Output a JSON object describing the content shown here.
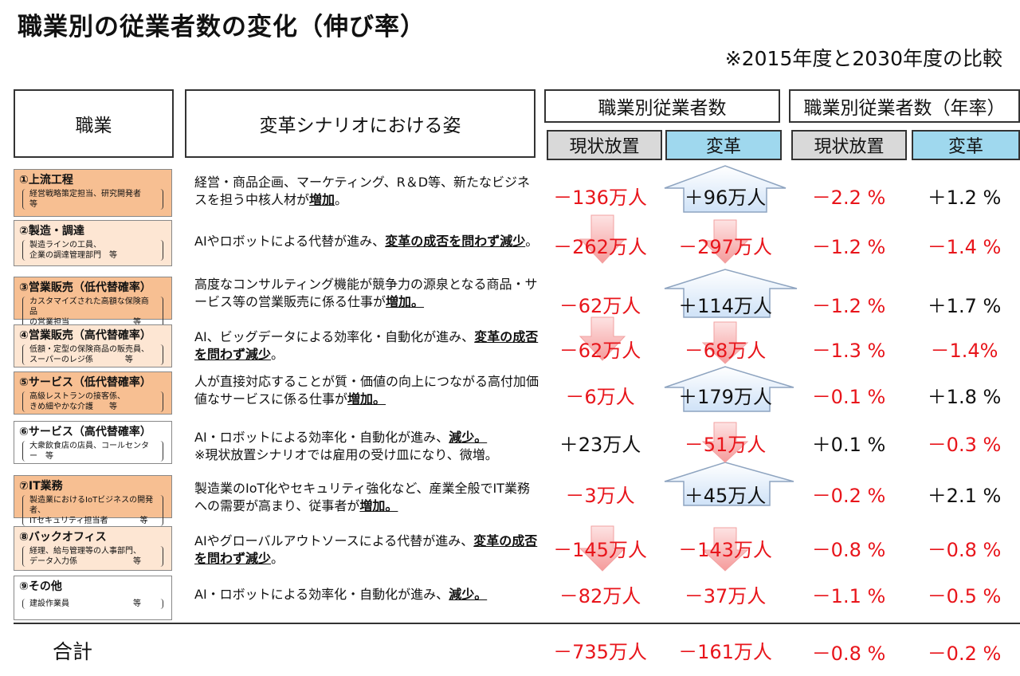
{
  "title": "職業別の従業者数の変化（伸び率）",
  "subtitle": "※2015年度と2030年度の比較",
  "headers": {
    "job": "職業",
    "scenario": "変革シナリオにおける姿",
    "workers": "職業別従業者数",
    "rate": "職業別従業者数（年率）",
    "status_quo": "現状放置",
    "reform": "変革"
  },
  "rows": [
    {
      "name": "①上流工程",
      "detail": "経営戦略策定担当、研究開発者\n等",
      "desc": "経営・商品企画、マーケティング、R＆D等、新たなビジネスを担う中核人材が",
      "desc_bold": "増加",
      "desc_tail": "。",
      "sq": "－136万人",
      "rf": "＋96万人",
      "sq_rate": "－2.2 %",
      "rf_rate": "＋1.2 %"
    },
    {
      "name": "②製造・調達",
      "detail": "製造ラインの工員、\n企業の調達管理部門　等",
      "desc": "AIやロボットによる代替が進み、",
      "desc_bold": "変革の成否を問わず減少",
      "desc_tail": "。",
      "sq": "－262万人",
      "rf": "－297万人",
      "sq_rate": "－1.2 %",
      "rf_rate": "－1.4 %"
    },
    {
      "name": "③営業販売（低代替確率）",
      "detail": "カスタマイズされた高額な保険商品\nの営業担当　　　　　　　　等",
      "desc": "高度なコンサルティング機能が競争力の源泉となる商品・サービス等の営業販売に係る仕事が",
      "desc_bold": "増加。",
      "desc_tail": "",
      "sq": "－62万人",
      "rf": "＋114万人",
      "sq_rate": "－1.2 %",
      "rf_rate": "＋1.7 %"
    },
    {
      "name": "④営業販売（高代替確率）",
      "detail": "低額・定型の保険商品の販売員、\nスーパーのレジ係　　　　等",
      "desc": "AI、ビッグデータによる効率化・自動化が進み、",
      "desc_bold": "変革の成否を問わず減少",
      "desc_tail": "。",
      "sq": "－62万人",
      "rf": "－68万人",
      "sq_rate": "－1.3 %",
      "rf_rate": "－1.4%"
    },
    {
      "name": "⑤サービス（低代替確率）",
      "detail": "高級レストランの接客係、\nきめ細やかな介護　　等",
      "desc": "人が直接対応することが質・価値の向上につながる高付加価値なサービスに係る仕事が",
      "desc_bold": "増加。",
      "desc_tail": "",
      "sq": "－6万人",
      "rf": "＋179万人",
      "sq_rate": "－0.1 %",
      "rf_rate": "＋1.8 %"
    },
    {
      "name": "⑥サービス（高代替確率）",
      "detail": "大衆飲食店の店員、コールセンター　等",
      "desc": "AI・ロボットによる効率化・自動化が進み、",
      "desc_bold": "減少。",
      "desc_tail": "\n※現状放置シナリオでは雇用の受け皿になり、微増。",
      "sq": "＋23万人",
      "rf": "－51万人",
      "sq_rate": "＋0.1 %",
      "rf_rate": "－0.3 %"
    },
    {
      "name": "⑦IT業務",
      "detail": "製造業におけるIoTビジネスの開発者、\nITセキュリティ担当者　　　　等",
      "desc": "製造業のIoT化やセキュリティ強化など、産業全般でIT業務への需要が高まり、従事者が",
      "desc_bold": "増加。",
      "desc_tail": "",
      "sq": "－3万人",
      "rf": "＋45万人",
      "sq_rate": "－0.2 %",
      "rf_rate": "＋2.1 %"
    },
    {
      "name": "⑧バックオフィス",
      "detail": "経理、給与管理等の人事部門、\nデータ入力係　　　　　　　等",
      "desc": "AIやグローバルアウトソースによる代替が進み、",
      "desc_bold": "変革の成否を問わず減少",
      "desc_tail": "。",
      "sq": "－145万人",
      "rf": "－143万人",
      "sq_rate": "－0.8 %",
      "rf_rate": "－0.8 %"
    },
    {
      "name": "⑨その他",
      "detail": "建設作業員　　　　　　　　等",
      "desc": "AI・ロボットによる効率化・自動化が進み、",
      "desc_bold": "減少。",
      "desc_tail": "",
      "sq": "－82万人",
      "rf": "－37万人",
      "sq_rate": "－1.1 %",
      "rf_rate": "－0.5 %"
    }
  ],
  "total": {
    "label": "合計",
    "sq": "－735万人",
    "rf": "－161万人",
    "sq_rate": "－0.8 %",
    "rf_rate": "－0.2 %"
  },
  "colors": {
    "red": "#e8151b",
    "orange": "#f7bf92",
    "light_orange": "#fde6d3",
    "blue_header": "#9fd8ee",
    "gray_header": "#d9d9d9"
  }
}
